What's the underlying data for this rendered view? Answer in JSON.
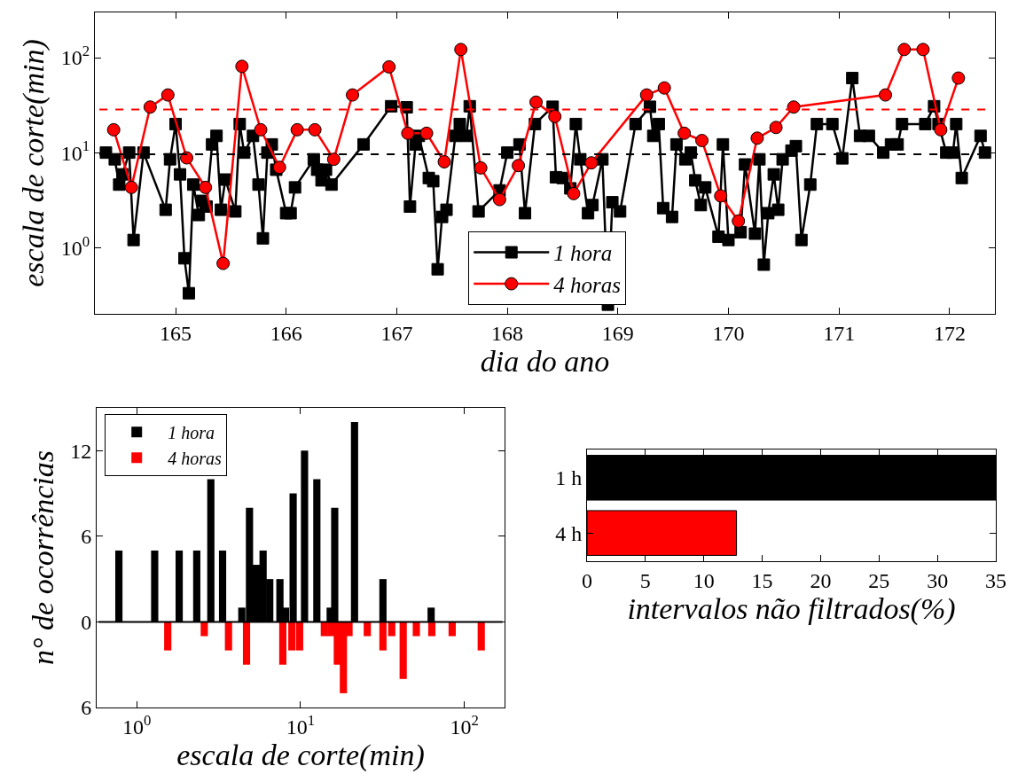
{
  "chart_data": [
    {
      "type": "line",
      "xlabel": "dia do ano",
      "ylabel": "escala de corte(min)",
      "log": "y",
      "legend": "bottom",
      "xlim": [
        164.27,
        172.41
      ],
      "xticks": [
        165,
        166,
        167,
        168,
        169,
        170,
        171,
        172
      ],
      "ylim": [
        0.2,
        300
      ],
      "yticks": [
        {
          "value": 1,
          "label": "10$^{0}$"
        },
        {
          "value": 10,
          "label": "10$^{1}$"
        },
        {
          "value": 100,
          "label": "10$^{2}$"
        }
      ],
      "ref_lines": [
        {
          "axis": "y",
          "value": 28.5,
          "color": "#ff0000",
          "line_style": "dashed"
        },
        {
          "axis": "y",
          "value": 9.6,
          "color": "#000000",
          "line_style": "dashed"
        }
      ],
      "series": [
        {
          "name": "1 hora",
          "color": "#000000",
          "marker": "square",
          "x": [
            164.37,
            164.45,
            164.49,
            164.52,
            164.58,
            164.62,
            164.71,
            164.91,
            164.95,
            165.0,
            165.04,
            165.08,
            165.12,
            165.16,
            165.21,
            165.24,
            165.28,
            165.33,
            165.37,
            165.41,
            165.45,
            165.54,
            165.58,
            165.62,
            165.7,
            165.75,
            165.79,
            165.83,
            165.87,
            165.91,
            166.0,
            166.04,
            166.08,
            166.25,
            166.28,
            166.32,
            166.36,
            166.41,
            166.7,
            166.95,
            167.09,
            167.12,
            167.17,
            167.2,
            167.29,
            167.33,
            167.37,
            167.41,
            167.45,
            167.53,
            167.57,
            167.63,
            167.66,
            167.74,
            167.87,
            167.93,
            168.0,
            168.11,
            168.16,
            168.25,
            168.41,
            168.44,
            168.5,
            168.57,
            168.62,
            168.66,
            168.73,
            168.77,
            168.82,
            168.86,
            168.91,
            168.95,
            169.02,
            169.16,
            169.29,
            169.32,
            169.37,
            169.41,
            169.49,
            169.53,
            169.61,
            169.66,
            169.7,
            169.75,
            169.79,
            169.91,
            169.95,
            170.0,
            170.11,
            170.15,
            170.24,
            170.28,
            170.32,
            170.36,
            170.41,
            170.45,
            170.49,
            170.57,
            170.61,
            170.66,
            170.74,
            170.8,
            170.94,
            171.03,
            171.12,
            171.19,
            171.27,
            171.4,
            171.47,
            171.53,
            171.57,
            171.78,
            171.86,
            171.9,
            171.97,
            172.03,
            172.06,
            172.11,
            172.28,
            172.32
          ],
          "values": [
            10,
            8.5,
            4.6,
            5.9,
            10,
            1.2,
            10,
            2.5,
            8.5,
            20,
            5.9,
            0.77,
            0.33,
            4.6,
            2.2,
            3.1,
            2.7,
            12.2,
            15,
            2.5,
            5.2,
            2.4,
            20,
            10,
            15,
            4.6,
            1.25,
            10,
            12.2,
            6.6,
            2.3,
            2.3,
            4.3,
            8.5,
            6.6,
            5.1,
            6.6,
            4.6,
            12.2,
            30.8,
            30,
            2.7,
            12.2,
            15,
            5.4,
            5,
            0.59,
            2.1,
            2.5,
            15,
            20,
            15,
            30.8,
            2.4,
            null,
            4,
            10,
            12.2,
            2.3,
            20,
            30.4,
            5.5,
            5.4,
            4.2,
            20,
            8.5,
            2.3,
            2.8,
            null,
            8.5,
            0.25,
            3,
            2.4,
            20,
            30.4,
            15,
            20,
            2.6,
            2.1,
            12.2,
            8.5,
            10,
            5.1,
            2.8,
            4.3,
            1.3,
            12.2,
            1.2,
            1.45,
            7.5,
            1.4,
            8.5,
            0.66,
            2.3,
            5.9,
            2.5,
            8.5,
            10.5,
            11.7,
            1.2,
            4.6,
            20,
            20,
            8.7,
            61,
            15,
            15,
            10,
            12.2,
            12.2,
            20,
            20,
            30.8,
            20,
            10,
            10,
            20,
            5.4,
            15,
            10
          ]
        },
        {
          "name": "4 horas",
          "color": "#ff0000",
          "marker": "circle",
          "x": [
            164.44,
            164.6,
            164.77,
            164.93,
            165.1,
            165.27,
            165.43,
            165.6,
            165.77,
            165.94,
            166.1,
            166.26,
            166.43,
            166.6,
            166.93,
            167.1,
            167.27,
            167.43,
            167.58,
            167.76,
            167.93,
            168.1,
            168.26,
            168.43,
            168.6,
            168.76,
            168.93,
            169.26,
            169.42,
            169.6,
            169.76,
            169.93,
            170.09,
            170.26,
            170.43,
            170.59,
            171.42,
            171.59,
            171.76,
            171.92,
            172.08
          ],
          "values": [
            17.4,
            4.3,
            30.2,
            40.5,
            8.8,
            4.3,
            0.68,
            81,
            17.4,
            7.0,
            17.4,
            17.4,
            8.5,
            40.5,
            80,
            16,
            16,
            8.0,
            122,
            6.9,
            3.2,
            7.3,
            34,
            24,
            3.7,
            7.8,
            null,
            40.5,
            48,
            16,
            13.4,
            3.5,
            1.9,
            14.2,
            18.4,
            30.2,
            40.5,
            122,
            122,
            17.4,
            61
          ]
        }
      ]
    },
    {
      "type": "bar",
      "xlabel": "escala de corte(min)",
      "ylabel": "n° de ocorrências",
      "log": "x",
      "legend": "top left",
      "xlim": [
        0.57,
        176
      ],
      "xticks": [
        {
          "value": 1,
          "label": "10$^{0}$"
        },
        {
          "value": 10,
          "label": "10$^{1}$"
        },
        {
          "value": 100,
          "label": "10$^{2}$"
        }
      ],
      "ylim": [
        -6,
        15
      ],
      "yticks": [
        {
          "value": -6,
          "label": "6"
        },
        0,
        6,
        12
      ],
      "ref_lines": [
        {
          "axis": "y",
          "value": 0,
          "color": "#000000"
        }
      ],
      "series": [
        {
          "name": "1 hora",
          "color": "#000000",
          "x": [
            0.78,
            1.29,
            1.82,
            2.33,
            2.84,
            3.35,
            4.39,
            4.89,
            5.38,
            5.92,
            6.5,
            7.5,
            8.11,
            9.03,
            10.6,
            12.6,
            15.2,
            16.2,
            21.4,
            31.9,
            62.8
          ],
          "values": [
            5,
            5,
            5,
            5,
            10,
            5,
            1,
            8,
            4,
            5,
            3,
            3,
            1,
            9,
            12,
            10,
            1,
            8,
            14,
            3,
            1
          ]
        },
        {
          "name": "4 horas",
          "color": "#ff0000",
          "x": [
            1.55,
            2.59,
            3.64,
            4.69,
            7.81,
            8.87,
            9.89,
            14.0,
            15.4,
            16.8,
            18.3,
            19.8,
            25.6,
            31.9,
            36.1,
            42.4,
            51.0,
            63.4,
            84.4,
            127
          ],
          "values": [
            -2,
            -1,
            -2,
            -3,
            -3,
            -2,
            -2,
            -1,
            -1,
            -3,
            -5,
            -1,
            -1,
            -2,
            -1,
            -4,
            -1,
            -1,
            -1,
            -2
          ]
        }
      ]
    },
    {
      "type": "bar",
      "orientation": "horizontal",
      "xlabel": "intervalos não filtrados(%)",
      "categories": [
        "1 h",
        "4 h"
      ],
      "values": [
        35,
        12.8
      ],
      "colors": [
        "#000000",
        "#ff0000"
      ],
      "xlim": [
        0,
        35
      ],
      "xticks": [
        0,
        5,
        10,
        15,
        20,
        25,
        30,
        35
      ]
    }
  ]
}
